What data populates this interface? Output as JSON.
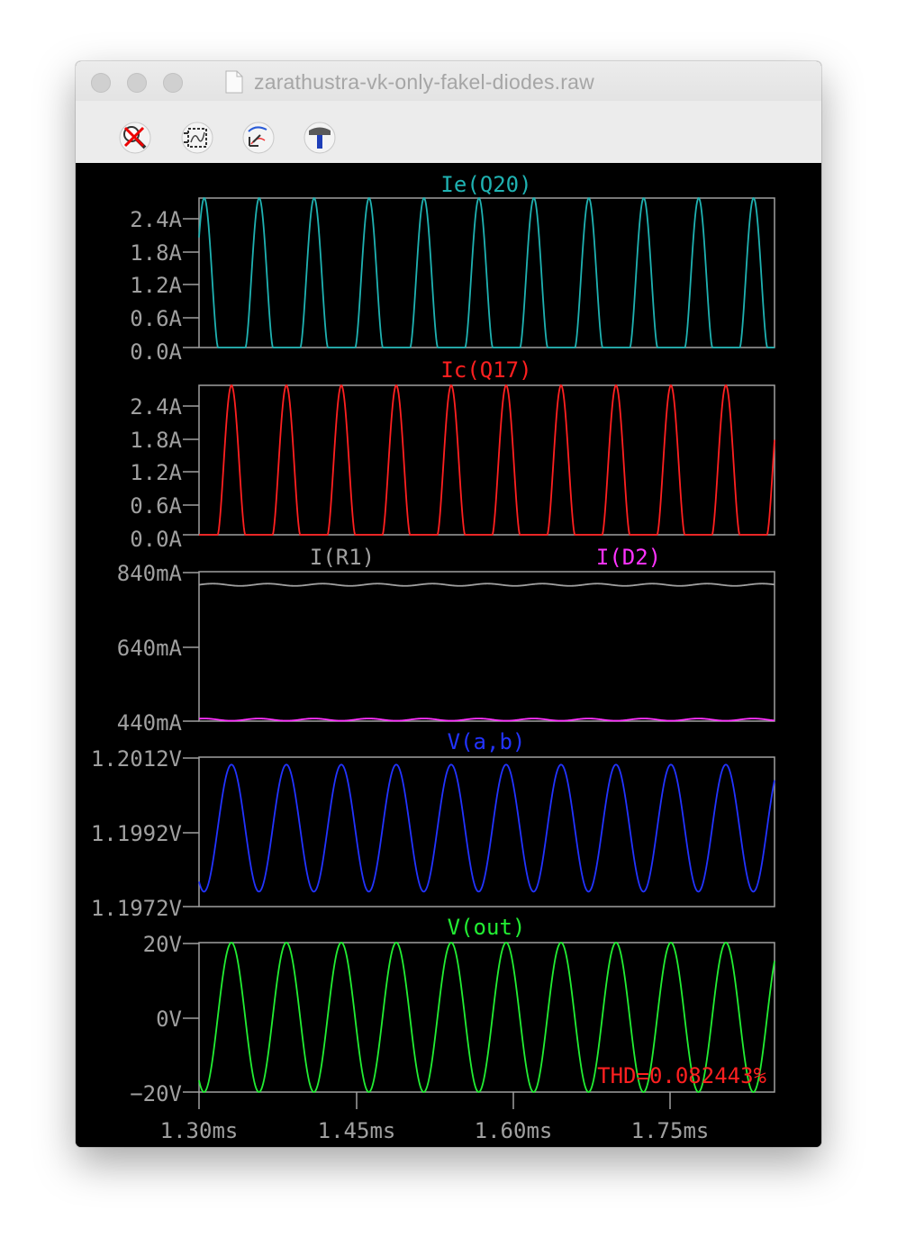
{
  "window": {
    "title": "zarathustra-vk-only-fakel-diodes.raw"
  },
  "toolbar": {
    "tools": [
      {
        "icon": "zoom-cancel-icon"
      },
      {
        "icon": "autorange-icon"
      },
      {
        "icon": "cursor-icon"
      },
      {
        "icon": "hammer-icon"
      }
    ]
  },
  "colors": {
    "ie_q20": "#1fb2b2",
    "ic_q17": "#ff2020",
    "i_r1": "#a0a0a0",
    "i_d2": "#ff33ff",
    "v_ab": "#2233ff",
    "v_out": "#22ee33",
    "axis": "#a0a0a0",
    "thd": "#ff2020"
  },
  "x_axis": {
    "ticks": [
      "1.30ms",
      "1.45ms",
      "1.60ms",
      "1.75ms"
    ]
  },
  "panels": [
    {
      "key": "ie",
      "title": "Ie(Q20)",
      "y_ticks": [
        "2.4A",
        "1.8A",
        "1.2A",
        "0.6A",
        "0.0A"
      ]
    },
    {
      "key": "ic",
      "title": "Ic(Q17)",
      "y_ticks": [
        "2.4A",
        "1.8A",
        "1.2A",
        "0.6A",
        "0.0A"
      ]
    },
    {
      "key": "ir",
      "title": "I(R1)",
      "title2": "I(D2)",
      "y_ticks": [
        "840mA",
        "640mA",
        "440mA"
      ]
    },
    {
      "key": "vab",
      "title": "V(a,b)",
      "y_ticks": [
        "1.2012V",
        "1.1992V",
        "1.1972V"
      ]
    },
    {
      "key": "vout",
      "title": "V(out)",
      "y_ticks": [
        "20V",
        "0V",
        "−20V"
      ]
    }
  ],
  "measurement": {
    "thd": "THD=0.082443%"
  },
  "chart_data": [
    {
      "type": "line",
      "name": "Ie(Q20)",
      "xlabel": "",
      "ylabel": "",
      "xlim": [
        1.3,
        1.85
      ],
      "ylim": [
        0.0,
        2.4
      ],
      "x_unit": "ms",
      "y_unit": "A",
      "series": [
        {
          "name": "Ie(Q20)",
          "waveform": "half-rectified sine peaks",
          "period_ms": 0.0525,
          "min": 0.0,
          "max": 2.4,
          "first_peak_ms": 1.305
        }
      ]
    },
    {
      "type": "line",
      "name": "Ic(Q17)",
      "xlabel": "",
      "ylabel": "",
      "xlim": [
        1.3,
        1.85
      ],
      "ylim": [
        0.0,
        2.4
      ],
      "x_unit": "ms",
      "y_unit": "A",
      "series": [
        {
          "name": "Ic(Q17)",
          "waveform": "half-rectified sine peaks",
          "period_ms": 0.0525,
          "min": 0.0,
          "max": 2.4,
          "first_peak_ms": 1.331
        }
      ]
    },
    {
      "type": "line",
      "name": "I(R1) / I(D2)",
      "xlabel": "",
      "ylabel": "",
      "xlim": [
        1.3,
        1.85
      ],
      "ylim": [
        440,
        840
      ],
      "x_unit": "ms",
      "y_unit": "mA",
      "series": [
        {
          "name": "I(R1)",
          "mean": 805,
          "ripple": 3,
          "period_ms": 0.0525
        },
        {
          "name": "I(D2)",
          "mean": 444,
          "ripple": 3,
          "period_ms": 0.0525
        }
      ]
    },
    {
      "type": "line",
      "name": "V(a,b)",
      "xlabel": "",
      "ylabel": "",
      "xlim": [
        1.3,
        1.85
      ],
      "ylim": [
        1.1972,
        1.2012
      ],
      "x_unit": "ms",
      "y_unit": "V",
      "series": [
        {
          "name": "V(a,b)",
          "waveform": "sine",
          "period_ms": 0.0525,
          "min": 1.1976,
          "max": 1.201,
          "first_peak_ms": 1.331
        }
      ]
    },
    {
      "type": "line",
      "name": "V(out)",
      "xlabel": "",
      "ylabel": "",
      "xlim": [
        1.3,
        1.85
      ],
      "ylim": [
        -20,
        20
      ],
      "x_unit": "ms",
      "y_unit": "V",
      "series": [
        {
          "name": "V(out)",
          "waveform": "sine",
          "period_ms": 0.0525,
          "min": -20,
          "max": 20,
          "first_peak_ms": 1.331
        }
      ]
    }
  ]
}
